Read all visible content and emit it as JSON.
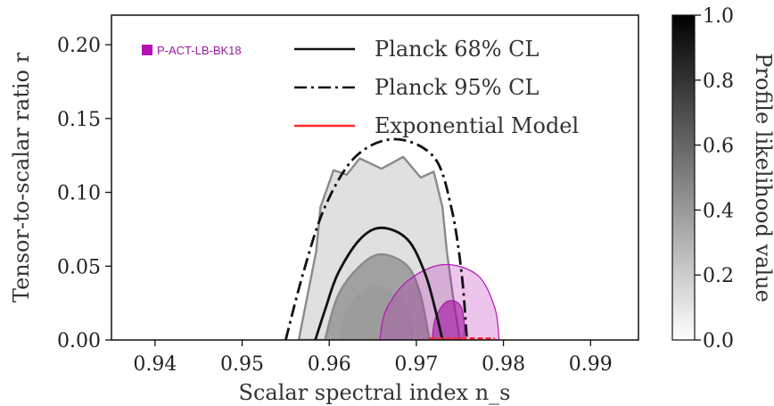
{
  "chart_data": {
    "type": "contour",
    "title": "",
    "xlabel": "Scalar spectral index n_s",
    "ylabel": "Tensor-to-scalar ratio r",
    "colorbar_label": "Profile likelihood value",
    "xlim": [
      0.935,
      0.9955
    ],
    "ylim": [
      0.0,
      0.22
    ],
    "xticks": [
      0.94,
      0.95,
      0.96,
      0.97,
      0.98,
      0.99
    ],
    "xtick_labels": [
      "0.94",
      "0.95",
      "0.96",
      "0.97",
      "0.98",
      "0.99"
    ],
    "yticks": [
      0.0,
      0.05,
      0.1,
      0.15,
      0.2
    ],
    "ytick_labels": [
      "0.00",
      "0.05",
      "0.10",
      "0.15",
      "0.20"
    ],
    "colorbar_ticks": [
      0.0,
      0.2,
      0.4,
      0.6,
      0.8,
      1.0
    ],
    "colorbar_tick_labels": [
      "0.0",
      "0.2",
      "0.4",
      "0.6",
      "0.8",
      "1.0"
    ],
    "legend_placement": "top-left",
    "legend": [
      {
        "name": "P-ACT-LB-BK18",
        "style": "filled-square",
        "color": "#b512b5"
      },
      {
        "name": "Planck 68% CL",
        "style": "solid",
        "color": "#111111"
      },
      {
        "name": "Planck 95% CL",
        "style": "dash-dot",
        "color": "#111111"
      },
      {
        "name": "Exponential Model",
        "style": "solid",
        "color": "#ff2a2a"
      }
    ],
    "planck_68": [
      [
        0.9584,
        0.0
      ],
      [
        0.9595,
        0.02
      ],
      [
        0.961,
        0.045
      ],
      [
        0.9635,
        0.068
      ],
      [
        0.966,
        0.076
      ],
      [
        0.969,
        0.068
      ],
      [
        0.971,
        0.045
      ],
      [
        0.9722,
        0.02
      ],
      [
        0.973,
        0.0
      ]
    ],
    "planck_95": [
      [
        0.955,
        0.0
      ],
      [
        0.957,
        0.045
      ],
      [
        0.9595,
        0.09
      ],
      [
        0.963,
        0.124
      ],
      [
        0.9675,
        0.136
      ],
      [
        0.972,
        0.124
      ],
      [
        0.974,
        0.09
      ],
      [
        0.9752,
        0.045
      ],
      [
        0.9758,
        0.0
      ]
    ],
    "profile_68": [
      [
        0.9595,
        0.0
      ],
      [
        0.961,
        0.03
      ],
      [
        0.9635,
        0.05
      ],
      [
        0.966,
        0.058
      ],
      [
        0.969,
        0.05
      ],
      [
        0.9705,
        0.03
      ],
      [
        0.9715,
        0.0
      ]
    ],
    "profile_95": [
      [
        0.9565,
        0.0
      ],
      [
        0.9575,
        0.03
      ],
      [
        0.9585,
        0.06
      ],
      [
        0.959,
        0.09
      ],
      [
        0.9605,
        0.115
      ],
      [
        0.962,
        0.112
      ],
      [
        0.9635,
        0.123
      ],
      [
        0.966,
        0.116
      ],
      [
        0.9685,
        0.124
      ],
      [
        0.9705,
        0.11
      ],
      [
        0.972,
        0.114
      ],
      [
        0.973,
        0.09
      ],
      [
        0.9735,
        0.06
      ],
      [
        0.9742,
        0.03
      ],
      [
        0.975,
        0.0
      ]
    ],
    "profile_peak": [
      0.9655,
      0.0
    ],
    "pact_68": [
      [
        0.9718,
        0.0
      ],
      [
        0.9722,
        0.015
      ],
      [
        0.9735,
        0.026
      ],
      [
        0.975,
        0.024
      ],
      [
        0.9755,
        0.012
      ],
      [
        0.9755,
        0.0
      ]
    ],
    "pact_95": [
      [
        0.9658,
        0.0
      ],
      [
        0.9665,
        0.02
      ],
      [
        0.969,
        0.04
      ],
      [
        0.973,
        0.051
      ],
      [
        0.977,
        0.044
      ],
      [
        0.979,
        0.022
      ],
      [
        0.9795,
        0.0
      ]
    ],
    "exponential_model": {
      "x": [
        0.9715,
        0.979
      ],
      "y": [
        0.0,
        0.0
      ]
    }
  }
}
